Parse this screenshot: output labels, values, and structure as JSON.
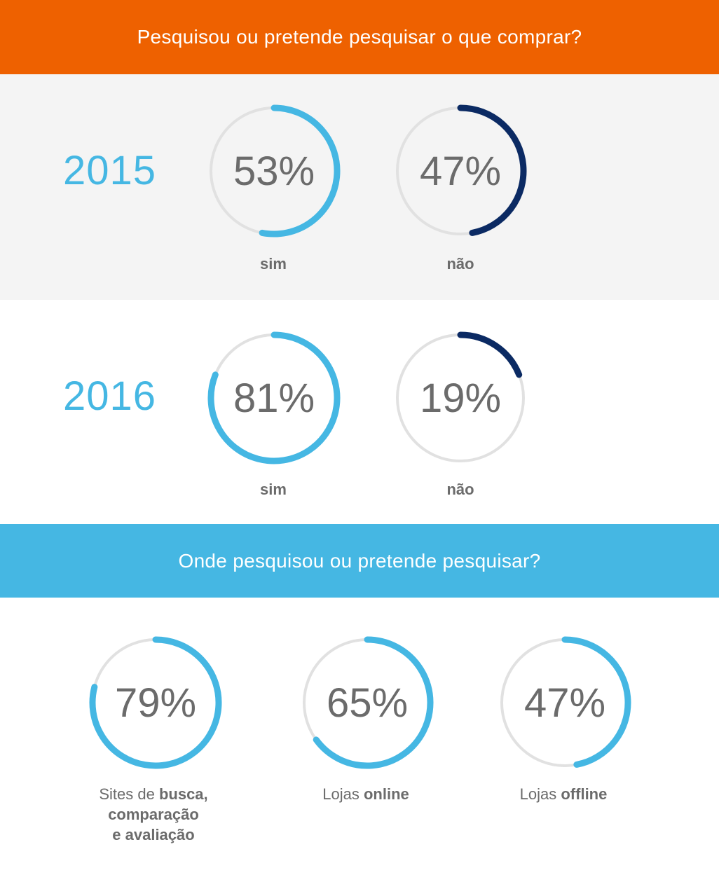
{
  "banner_top": "Pesquisou ou pretende pesquisar o que comprar?",
  "banner_mid": "Onde pesquisou ou pretende pesquisar?",
  "colors": {
    "orange": "#ee6100",
    "light_blue": "#45b7e3",
    "navy": "#0b2a63",
    "track": "#e1e1e1"
  },
  "chart_data": [
    {
      "type": "pie",
      "year": "2015",
      "series": [
        {
          "label": "sim",
          "value": 53,
          "display": "53%",
          "color": "#45b7e3"
        },
        {
          "label": "não",
          "value": 47,
          "display": "47%",
          "color": "#0b2a63"
        }
      ]
    },
    {
      "type": "pie",
      "year": "2016",
      "series": [
        {
          "label": "sim",
          "value": 81,
          "display": "81%",
          "color": "#45b7e3"
        },
        {
          "label": "não",
          "value": 19,
          "display": "19%",
          "color": "#0b2a63"
        }
      ]
    },
    {
      "type": "pie",
      "series": [
        {
          "label_plain": "Sites de ",
          "label_bold": "busca, comparação e avaliação",
          "value": 79,
          "display": "79%",
          "color": "#45b7e3"
        },
        {
          "label_plain": "Lojas ",
          "label_bold": "online",
          "value": 65,
          "display": "65%",
          "color": "#45b7e3"
        },
        {
          "label_plain": "Lojas ",
          "label_bold": "offline",
          "value": 47,
          "display": "47%",
          "color": "#45b7e3"
        }
      ]
    }
  ]
}
